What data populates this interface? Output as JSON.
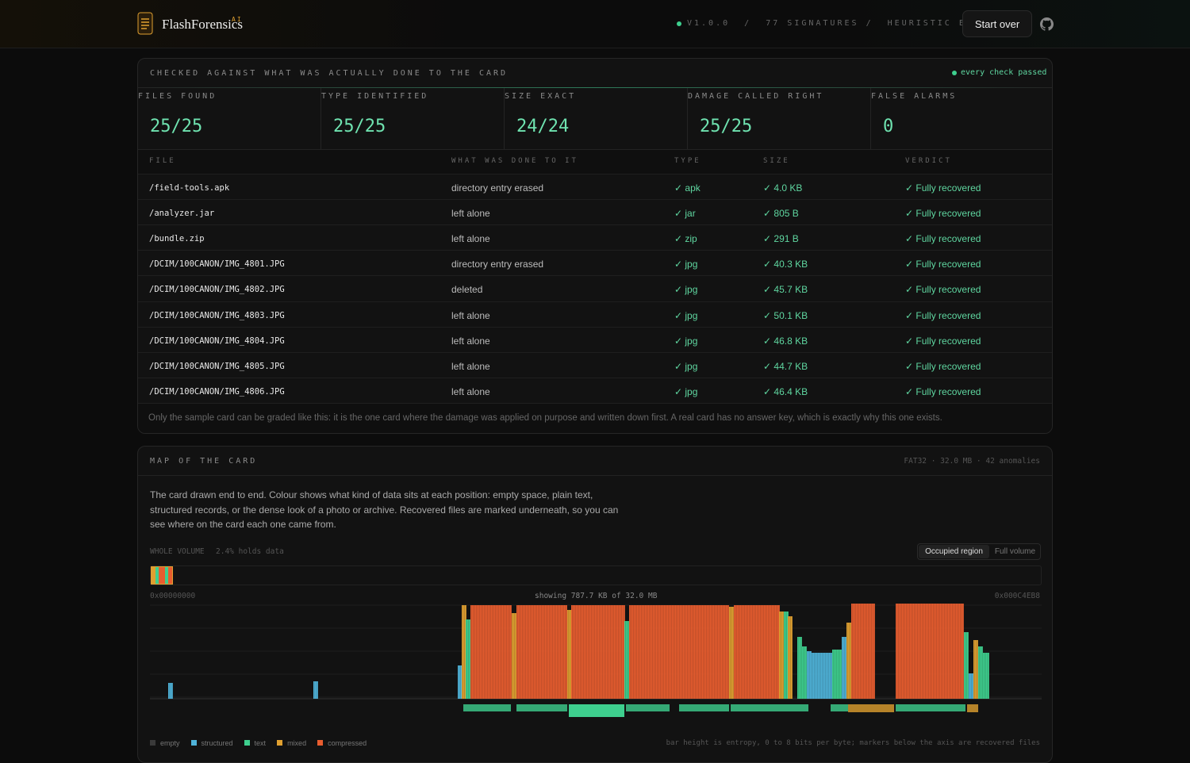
{
  "header": {
    "brand": "FlashForensics",
    "badge": "AI",
    "version": "V1.0.0",
    "separator": "/",
    "signatures": "77 SIGNATURES",
    "engine": "HEURISTIC ENGINE",
    "button": "Start over"
  },
  "grading": {
    "title": "CHECKED AGAINST WHAT WAS ACTUALLY DONE TO THE CARD",
    "status": "every check passed",
    "stats": [
      {
        "label": "FILES FOUND",
        "value": "25/25"
      },
      {
        "label": "TYPE IDENTIFIED",
        "value": "25/25"
      },
      {
        "label": "SIZE EXACT",
        "value": "24/24"
      },
      {
        "label": "DAMAGE CALLED RIGHT",
        "value": "25/25"
      },
      {
        "label": "FALSE ALARMS",
        "value": "0"
      }
    ],
    "columns": [
      "FILE",
      "WHAT WAS DONE TO IT",
      "TYPE",
      "SIZE",
      "VERDICT"
    ],
    "rows": [
      [
        "/field-tools.apk",
        "directory entry erased",
        "✓ apk",
        "✓ 4.0 KB",
        "✓ Fully recovered"
      ],
      [
        "/analyzer.jar",
        "left alone",
        "✓ jar",
        "✓ 805 B",
        "✓ Fully recovered"
      ],
      [
        "/bundle.zip",
        "left alone",
        "✓ zip",
        "✓ 291 B",
        "✓ Fully recovered"
      ],
      [
        "/DCIM/100CANON/IMG_4801.JPG",
        "directory entry erased",
        "✓ jpg",
        "✓ 40.3 KB",
        "✓ Fully recovered"
      ],
      [
        "/DCIM/100CANON/IMG_4802.JPG",
        "deleted",
        "✓ jpg",
        "✓ 45.7 KB",
        "✓ Fully recovered"
      ],
      [
        "/DCIM/100CANON/IMG_4803.JPG",
        "left alone",
        "✓ jpg",
        "✓ 50.1 KB",
        "✓ Fully recovered"
      ],
      [
        "/DCIM/100CANON/IMG_4804.JPG",
        "left alone",
        "✓ jpg",
        "✓ 46.8 KB",
        "✓ Fully recovered"
      ],
      [
        "/DCIM/100CANON/IMG_4805.JPG",
        "left alone",
        "✓ jpg",
        "✓ 44.7 KB",
        "✓ Fully recovered"
      ],
      [
        "/DCIM/100CANON/IMG_4806.JPG",
        "left alone",
        "✓ jpg",
        "✓ 46.4 KB",
        "✓ Fully recovered"
      ]
    ],
    "note": "Only the sample card can be graded like this: it is the one card where the damage was applied on purpose and written down first. A real card has no answer key, which is exactly why this one exists."
  },
  "map": {
    "title": "MAP OF THE CARD",
    "meta": "FAT32 · 32.0 MB · 42 anomalies",
    "description": [
      "The card drawn end to end. Colour shows what kind of data sits at each position: empty space, plain text,",
      "structured records, or the dense look of a photo or archive. Recovered files are marked underneath, so you can",
      "see where on the card each one came from."
    ],
    "volume_label": "WHOLE VOLUME",
    "volume_share": "2.4% holds data",
    "toggles": [
      "Occupied region",
      "Full volume"
    ],
    "start_address": "0x00000000",
    "showing": "showing 787.7 KB of 32.0 MB",
    "end_address": "0x000C4EB8",
    "legend": [
      "empty",
      "structured",
      "text",
      "mixed",
      "compressed"
    ],
    "caption": "bar height is entropy, 0 to 8 bits per byte; markers below the axis are recovered files"
  }
}
